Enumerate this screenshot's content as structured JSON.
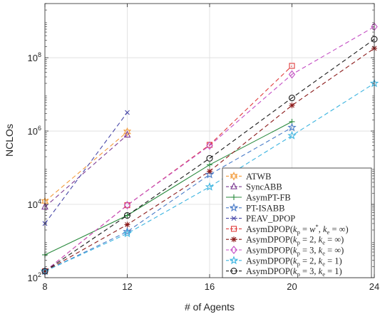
{
  "chart_data": {
    "type": "line",
    "title": "",
    "xlabel": "# of Agents",
    "ylabel": "NCLOs",
    "y_scale": "log",
    "xlim": [
      8,
      24
    ],
    "ylim": [
      100,
      3000000000
    ],
    "x_ticks": [
      8,
      12,
      16,
      20,
      24
    ],
    "y_ticks": [
      {
        "value": 100,
        "base": "10",
        "exp": "2"
      },
      {
        "value": 10000,
        "base": "10",
        "exp": "4"
      },
      {
        "value": 1000000,
        "base": "10",
        "exp": "6"
      },
      {
        "value": 100000000,
        "base": "10",
        "exp": "8"
      }
    ],
    "grid": true,
    "legend_position": "bottom-right",
    "series": [
      {
        "name": "ATWB",
        "legend": [
          {
            "t": "ATWB"
          }
        ],
        "color": "#f39c3c",
        "marker": "star-diamond",
        "dash": "6,4",
        "x": [
          8,
          12
        ],
        "y": [
          12000,
          950000
        ]
      },
      {
        "name": "SyncABB",
        "legend": [
          {
            "t": "SyncABB"
          }
        ],
        "color": "#7e3c94",
        "marker": "triangle",
        "dash": "6,4",
        "x": [
          8,
          12
        ],
        "y": [
          8500,
          780000
        ]
      },
      {
        "name": "AsymPT-FB",
        "legend": [
          {
            "t": "AsymPT-FB"
          }
        ],
        "color": "#2a8a3e",
        "marker": "plus",
        "dash": "",
        "x": [
          8,
          12,
          16,
          20
        ],
        "y": [
          420,
          5000,
          120000,
          1800000
        ]
      },
      {
        "name": "PT-ISABB",
        "legend": [
          {
            "t": "PT-ISABB"
          }
        ],
        "color": "#4a7cc8",
        "marker": "star",
        "dash": "6,4",
        "x": [
          8,
          12,
          16,
          20
        ],
        "y": [
          150,
          1800,
          65000,
          1250000
        ]
      },
      {
        "name": "PEAV_DPOP",
        "legend": [
          {
            "t": "PEAV_DPOP"
          }
        ],
        "color": "#4747a8",
        "marker": "x",
        "dash": "6,4",
        "x": [
          8,
          12
        ],
        "y": [
          3000,
          3200000
        ]
      },
      {
        "name": "AsymDPOP(kp = w*, ke = ∞)",
        "legend": [
          {
            "t": "AsymDPOP("
          },
          {
            "t": "k",
            "i": 1
          },
          {
            "t": "p",
            "sub": 1
          },
          {
            "t": " = "
          },
          {
            "t": "w",
            "i": 1
          },
          {
            "t": "*",
            "sup": 1
          },
          {
            "t": ", "
          },
          {
            "t": "k",
            "i": 1
          },
          {
            "t": "e",
            "sub": 1
          },
          {
            "t": " = ∞)"
          }
        ],
        "color": "#e03c3c",
        "marker": "square",
        "dash": "6,4",
        "x": [
          8,
          12,
          16,
          20
        ],
        "y": [
          150,
          9500,
          420000,
          60000000
        ]
      },
      {
        "name": "AsymDPOP(kp = 2, ke = ∞)",
        "legend": [
          {
            "t": "AsymDPOP("
          },
          {
            "t": "k",
            "i": 1
          },
          {
            "t": "p",
            "sub": 1
          },
          {
            "t": " = 2, "
          },
          {
            "t": "k",
            "i": 1
          },
          {
            "t": "e",
            "sub": 1
          },
          {
            "t": " = ∞)"
          }
        ],
        "color": "#8b1a1a",
        "marker": "asterisk",
        "dash": "6,4",
        "x": [
          8,
          12,
          16,
          20,
          24
        ],
        "y": [
          150,
          2800,
          80000,
          5000000,
          180000000
        ]
      },
      {
        "name": "AsymDPOP(kp = 3, ke = ∞)",
        "legend": [
          {
            "t": "AsymDPOP("
          },
          {
            "t": "k",
            "i": 1
          },
          {
            "t": "p",
            "sub": 1
          },
          {
            "t": " = 3, "
          },
          {
            "t": "k",
            "i": 1
          },
          {
            "t": "e",
            "sub": 1
          },
          {
            "t": " = ∞)"
          }
        ],
        "color": "#c44ec4",
        "marker": "diamond",
        "dash": "6,4",
        "x": [
          8,
          12,
          16,
          20,
          24
        ],
        "y": [
          150,
          9500,
          400000,
          35000000,
          700000000
        ]
      },
      {
        "name": "AsymDPOP(kp = 2, ke = 1)",
        "legend": [
          {
            "t": "AsymDPOP("
          },
          {
            "t": "k",
            "i": 1
          },
          {
            "t": "p",
            "sub": 1
          },
          {
            "t": " = 2, "
          },
          {
            "t": "k",
            "i": 1
          },
          {
            "t": "e",
            "sub": 1
          },
          {
            "t": " = 1)"
          }
        ],
        "color": "#3cb4e0",
        "marker": "star",
        "dash": "6,4",
        "x": [
          8,
          12,
          16,
          20,
          24
        ],
        "y": [
          150,
          1600,
          30000,
          750000,
          20000000
        ]
      },
      {
        "name": "AsymDPOP(kp = 3, ke = 1)",
        "legend": [
          {
            "t": "AsymDPOP("
          },
          {
            "t": "k",
            "i": 1
          },
          {
            "t": "p",
            "sub": 1
          },
          {
            "t": " = 3, "
          },
          {
            "t": "k",
            "i": 1
          },
          {
            "t": "e",
            "sub": 1
          },
          {
            "t": " = 1)"
          }
        ],
        "color": "#1a1a1a",
        "marker": "circle",
        "dash": "6,4",
        "x": [
          8,
          12,
          16,
          20,
          24
        ],
        "y": [
          150,
          5000,
          180000,
          8000000,
          320000000
        ]
      }
    ]
  }
}
